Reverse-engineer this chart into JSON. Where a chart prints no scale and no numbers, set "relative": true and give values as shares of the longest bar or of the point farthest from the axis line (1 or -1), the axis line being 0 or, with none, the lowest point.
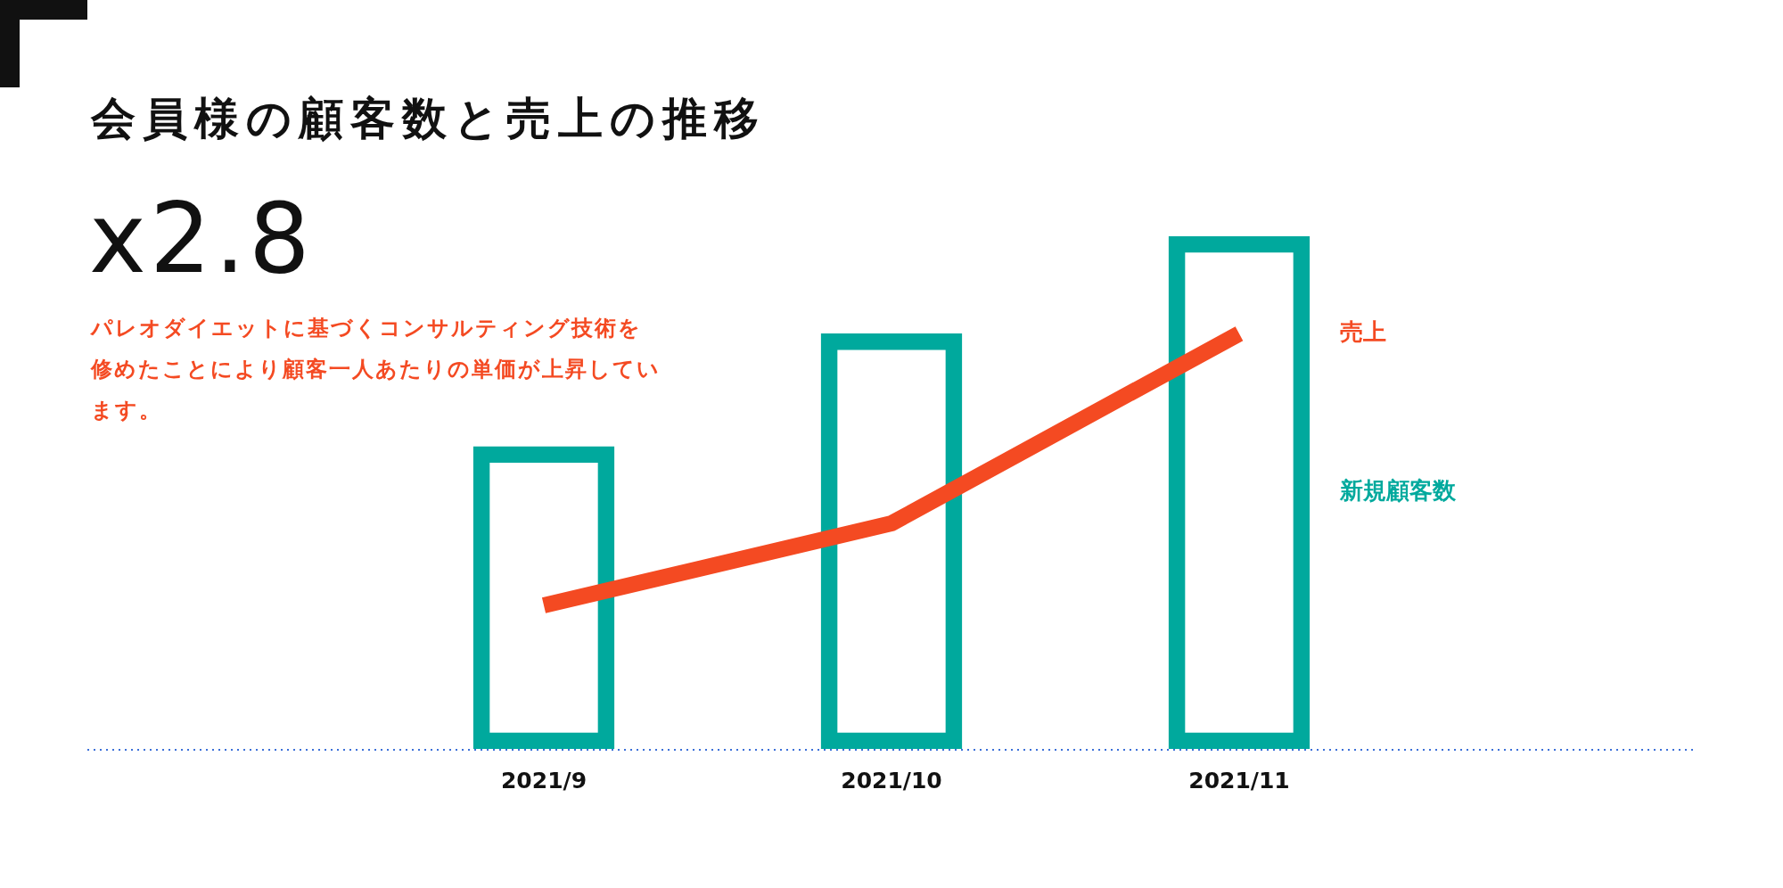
{
  "chart_data": {
    "type": "bar",
    "title": "会員様の顧客数と売上の推移",
    "subtitle": "x2.8",
    "annotations": [
      "パレオダイエットに基づくコンサルティング技術を修めたことにより顧客一人あたりの単価が上昇しています。"
    ],
    "categories": [
      "2021/9",
      "2021/10",
      "2021/11"
    ],
    "relative": true,
    "legend": false,
    "series": [
      {
        "name": "新規顧客数",
        "color": "#00a99d",
        "values": [
          0.59,
          0.81,
          1
        ]
      },
      {
        "name": "売上",
        "type": "line",
        "color": "#f44a22",
        "values": [
          0.28,
          0.44,
          0.81
        ]
      }
    ]
  }
}
